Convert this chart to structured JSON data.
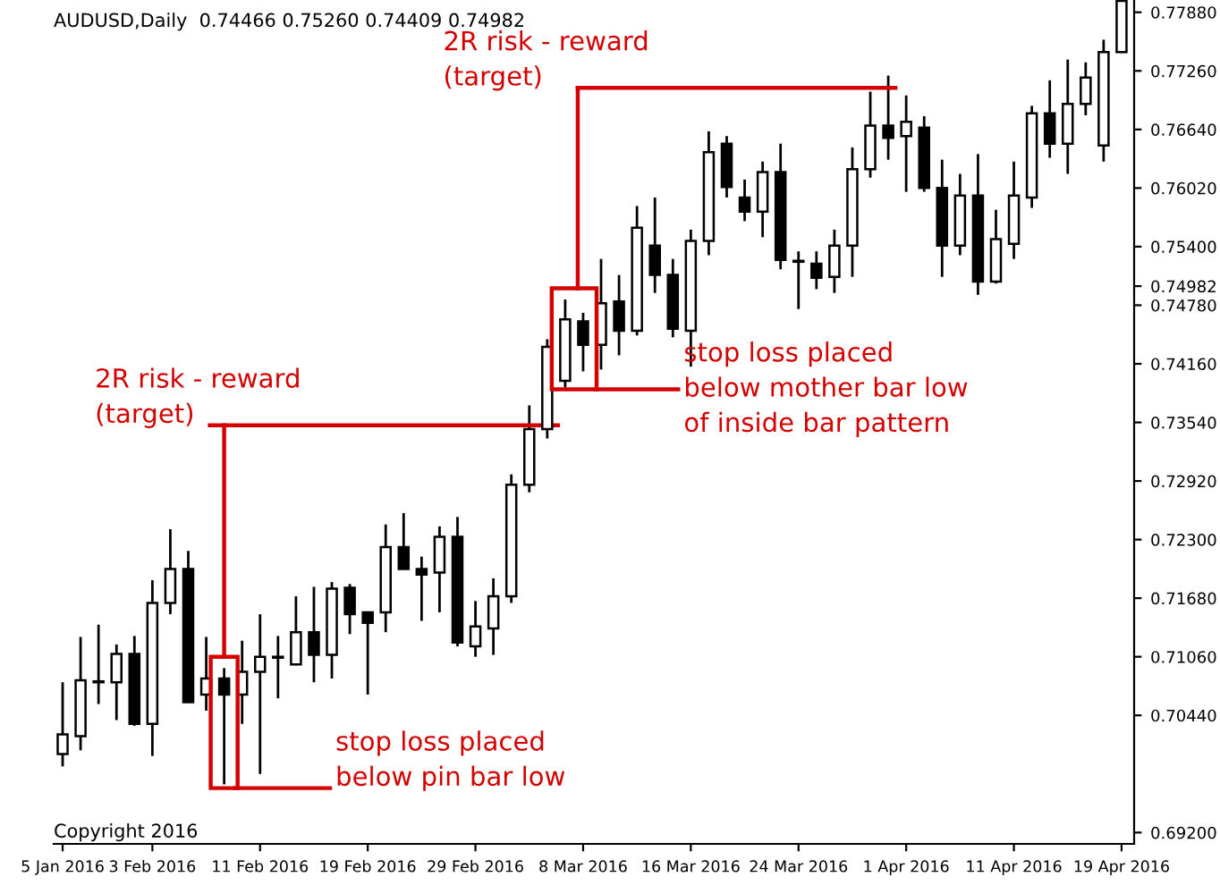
{
  "chart_data": {
    "type": "candlestick",
    "title": "AUDUSD,Daily  0.74466 0.75260 0.74409 0.74982",
    "categories": [
      "5 Jan 2016",
      null,
      null,
      null,
      null,
      "3 Feb 2016",
      null,
      null,
      null,
      null,
      null,
      "11 Feb 2016",
      null,
      null,
      null,
      null,
      null,
      "19 Feb 2016",
      null,
      null,
      null,
      null,
      null,
      "29 Feb 2016",
      null,
      null,
      null,
      null,
      null,
      "8 Mar 2016",
      null,
      null,
      null,
      null,
      null,
      "16 Mar 2016",
      null,
      null,
      null,
      null,
      null,
      "24 Mar 2016",
      null,
      null,
      null,
      null,
      null,
      "1 Apr 2016",
      null,
      null,
      null,
      null,
      null,
      "11 Apr 2016",
      null,
      null,
      null,
      null,
      null,
      "19 Apr 2016"
    ],
    "series": [
      {
        "color": "#000000",
        "ohlc": [
          [
            0.7003,
            0.7079,
            0.699,
            0.7024
          ],
          [
            0.7022,
            0.7127,
            0.7007,
            0.7081
          ],
          [
            0.7079,
            0.714,
            0.7056,
            0.708
          ],
          [
            0.7079,
            0.7119,
            0.7039,
            0.7109
          ],
          [
            0.7109,
            0.7128,
            0.7033,
            0.7035
          ],
          [
            0.7035,
            0.7187,
            0.7001,
            0.7163
          ],
          [
            0.7163,
            0.7241,
            0.7151,
            0.7199
          ],
          [
            0.7199,
            0.7218,
            0.7058,
            0.7058
          ],
          [
            0.7066,
            0.7127,
            0.7049,
            0.7083
          ],
          [
            0.7083,
            0.7094,
            0.6971,
            0.7066
          ],
          [
            0.7066,
            0.7123,
            0.7035,
            0.709
          ],
          [
            0.709,
            0.7151,
            0.6982,
            0.7106
          ],
          [
            0.7106,
            0.7128,
            0.7062,
            0.7105
          ],
          [
            0.7098,
            0.717,
            0.7097,
            0.7132
          ],
          [
            0.7132,
            0.718,
            0.7079,
            0.7108
          ],
          [
            0.7108,
            0.7185,
            0.7083,
            0.7178
          ],
          [
            0.7179,
            0.7183,
            0.713,
            0.7151
          ],
          [
            0.7153,
            0.7154,
            0.7066,
            0.7142
          ],
          [
            0.7153,
            0.7246,
            0.7132,
            0.7222
          ],
          [
            0.7222,
            0.7258,
            0.7199,
            0.7199
          ],
          [
            0.7199,
            0.7212,
            0.7144,
            0.7193
          ],
          [
            0.7195,
            0.7244,
            0.7153,
            0.7233
          ],
          [
            0.7233,
            0.7254,
            0.7117,
            0.7121
          ],
          [
            0.7117,
            0.7165,
            0.7106,
            0.7138
          ],
          [
            0.7136,
            0.7189,
            0.7108,
            0.717
          ],
          [
            0.717,
            0.7299,
            0.7163,
            0.7288
          ],
          [
            0.7288,
            0.7372,
            0.728,
            0.7347
          ],
          [
            0.7347,
            0.7442,
            0.7337,
            0.7434
          ],
          [
            0.7398,
            0.7484,
            0.7391,
            0.7463
          ],
          [
            0.7461,
            0.747,
            0.7408,
            0.7436
          ],
          [
            0.7436,
            0.7527,
            0.741,
            0.748
          ],
          [
            0.7482,
            0.751,
            0.7425,
            0.7451
          ],
          [
            0.7451,
            0.7583,
            0.7446,
            0.756
          ],
          [
            0.7541,
            0.7592,
            0.7491,
            0.751
          ],
          [
            0.751,
            0.7527,
            0.7444,
            0.7453
          ],
          [
            0.7451,
            0.7558,
            0.7413,
            0.7546
          ],
          [
            0.7546,
            0.7662,
            0.7531,
            0.764
          ],
          [
            0.7649,
            0.7657,
            0.7592,
            0.7603
          ],
          [
            0.7592,
            0.7611,
            0.7567,
            0.7577
          ],
          [
            0.7577,
            0.763,
            0.755,
            0.7619
          ],
          [
            0.7619,
            0.7649,
            0.7516,
            0.7526
          ],
          [
            0.7525,
            0.7535,
            0.7474,
            0.7524
          ],
          [
            0.7522,
            0.7535,
            0.7495,
            0.7507
          ],
          [
            0.7508,
            0.7558,
            0.7491,
            0.7541
          ],
          [
            0.7541,
            0.7645,
            0.7508,
            0.7622
          ],
          [
            0.7622,
            0.7704,
            0.7613,
            0.7668
          ],
          [
            0.7668,
            0.7721,
            0.7632,
            0.7655
          ],
          [
            0.7657,
            0.77,
            0.7598,
            0.7672
          ],
          [
            0.7666,
            0.7678,
            0.7598,
            0.7602
          ],
          [
            0.7602,
            0.7632,
            0.7508,
            0.7541
          ],
          [
            0.7541,
            0.7617,
            0.7531,
            0.7594
          ],
          [
            0.7594,
            0.7638,
            0.7489,
            0.7503
          ],
          [
            0.7503,
            0.7579,
            0.7501,
            0.7548
          ],
          [
            0.7543,
            0.763,
            0.7527,
            0.7594
          ],
          [
            0.7592,
            0.7689,
            0.7581,
            0.7681
          ],
          [
            0.7681,
            0.7716,
            0.7634,
            0.7649
          ],
          [
            0.7649,
            0.7738,
            0.7617,
            0.7691
          ],
          [
            0.7691,
            0.7735,
            0.7679,
            0.7719
          ],
          [
            0.7647,
            0.7759,
            0.763,
            0.7746
          ],
          [
            0.7746,
            0.78,
            0.7745,
            0.78
          ]
        ]
      }
    ],
    "ylim": [
      0.6908,
      0.7801
    ],
    "yticks": [
      {
        "value": 0.7788,
        "label": "0.77880"
      },
      {
        "value": 0.7726,
        "label": "0.77260"
      },
      {
        "value": 0.7664,
        "label": "0.76640"
      },
      {
        "value": 0.7602,
        "label": "0.76020"
      },
      {
        "value": 0.754,
        "label": "0.75400"
      },
      {
        "value": 0.74982,
        "label": "0.74982"
      },
      {
        "value": 0.7478,
        "label": "0.74780"
      },
      {
        "value": 0.7416,
        "label": "0.74160"
      },
      {
        "value": 0.7354,
        "label": "0.73540"
      },
      {
        "value": 0.7292,
        "label": "0.72920"
      },
      {
        "value": 0.723,
        "label": "0.72300"
      },
      {
        "value": 0.7168,
        "label": "0.71680"
      },
      {
        "value": 0.7106,
        "label": "0.71060"
      },
      {
        "value": 0.7044,
        "label": "0.70440"
      },
      {
        "value": 0.692,
        "label": "0.69200"
      }
    ],
    "grid": false,
    "ref_lines": [
      {
        "axis": "y",
        "value": 0.7351,
        "label": "2R risk - reward\n(target)",
        "color": "#d40000"
      },
      {
        "axis": "y",
        "value": 0.7708,
        "label": "2R risk - reward\n(target)",
        "color": "#d40000"
      },
      {
        "axis": "y",
        "value": 0.6967,
        "label": "stop loss placed\nbelow pin bar low",
        "color": "#d40000"
      },
      {
        "axis": "y",
        "value": 0.7389,
        "label": "stop loss placed\nbelow mother bar low\nof inside bar pattern",
        "color": "#d40000"
      }
    ],
    "annotations": [
      "Copyright 2016"
    ]
  }
}
